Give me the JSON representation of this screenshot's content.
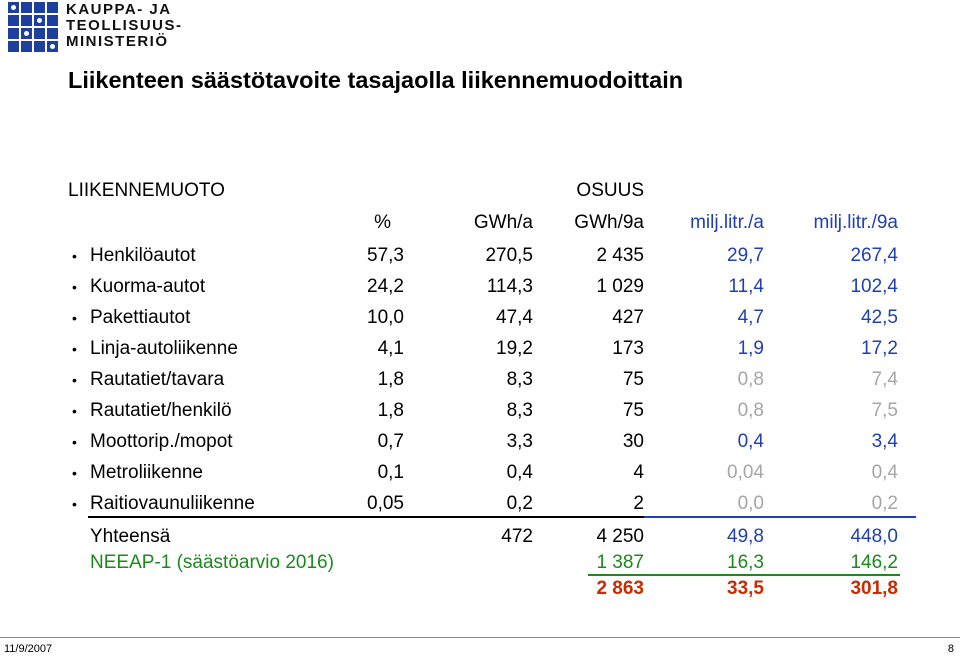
{
  "logo": {
    "line1": "KAUPPA- JA",
    "line2": "TEOLLISUUS-",
    "line3": "MINISTERIÖ",
    "color": "#1f3f9f"
  },
  "title": "Liikenteen säästötavoite tasajaolla liikennemuodoittain",
  "headers": {
    "mode": "LIIKENNEMUOTO",
    "share_group": "OSUUS",
    "pct": "%",
    "gwh_a": "GWh/a",
    "gwh_9a": "GWh/9a",
    "milj_a": "milj.litr./a",
    "milj_9a": "milj.litr./9a"
  },
  "rows": [
    {
      "label": "Henkilöautot",
      "pct": "57,3",
      "gwh_a": "270,5",
      "gwh_9a": "2 435",
      "milj_a": "29,7",
      "milj_9a": "267,4"
    },
    {
      "label": "Kuorma-autot",
      "pct": "24,2",
      "gwh_a": "114,3",
      "gwh_9a": "1 029",
      "milj_a": "11,4",
      "milj_9a": "102,4"
    },
    {
      "label": "Pakettiautot",
      "pct": "10,0",
      "gwh_a": "47,4",
      "gwh_9a": "427",
      "milj_a": "4,7",
      "milj_9a": "42,5"
    },
    {
      "label": "Linja-autoliikenne",
      "pct": "4,1",
      "gwh_a": "19,2",
      "gwh_9a": "173",
      "milj_a": "1,9",
      "milj_9a": "17,2"
    },
    {
      "label": "Rautatiet/tavara",
      "pct": "1,8",
      "gwh_a": "8,3",
      "gwh_9a": "75",
      "milj_a": "0,8",
      "milj_9a": "7,4"
    },
    {
      "label": "Rautatiet/henkilö",
      "pct": "1,8",
      "gwh_a": "8,3",
      "gwh_9a": "75",
      "milj_a": "0,8",
      "milj_9a": "7,5"
    },
    {
      "label": "Moottorip./mopot",
      "pct": "0,7",
      "gwh_a": "3,3",
      "gwh_9a": "30",
      "milj_a": "0,4",
      "milj_9a": "3,4"
    },
    {
      "label": "Metroliikenne",
      "pct": "0,1",
      "gwh_a": "0,4",
      "gwh_9a": "4",
      "milj_a": "0,04",
      "milj_9a": "0,4"
    },
    {
      "label": "Raitiovaunuliikenne",
      "pct": "0,05",
      "gwh_a": "0,2",
      "gwh_9a": "2",
      "milj_a": "0,0",
      "milj_9a": "0,2"
    }
  ],
  "total": {
    "label": "Yhteensä",
    "gwh_a": "472",
    "gwh_9a": "4 250",
    "milj_a": "49,8",
    "milj_9a": "448,0"
  },
  "neeap": {
    "label": "NEEAP-1 (säästöarvio 2016)",
    "gwh_9a": "1 387",
    "milj_a": "16,3",
    "milj_9a": "146,2"
  },
  "remaining": {
    "gwh_9a": "2 863",
    "milj_a": "33,5",
    "milj_9a": "301,8"
  },
  "footer": {
    "date": "11/9/2007",
    "page": "8"
  },
  "colors": {
    "blue": "#1f3fb2",
    "gray": "#a6a6a6",
    "green": "#1a8a1a",
    "red": "#cc2a00"
  }
}
